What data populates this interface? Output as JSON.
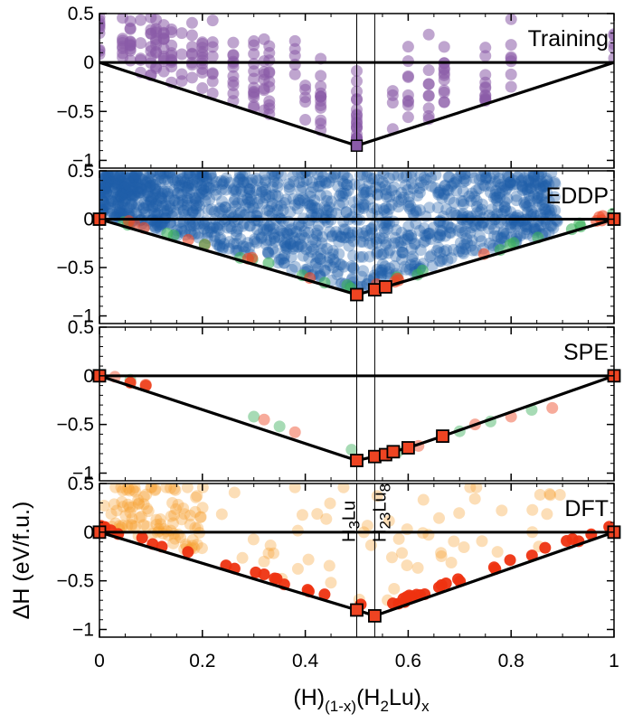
{
  "chart_data": {
    "type": "scatter",
    "description_free": true,
    "x_axis": {
      "label_main": "(H)",
      "label_sub1": "(1-x)",
      "label_mid": "(H",
      "label_sub2": "2",
      "label_end": "Lu)",
      "label_sub3": "x",
      "range": [
        0,
        1
      ],
      "ticks": [
        0,
        0.2,
        0.4,
        0.6,
        0.8,
        1
      ],
      "tick_labels": [
        "0",
        "0.2",
        "0.4",
        "0.6",
        "0.8",
        "1"
      ]
    },
    "y_axis": {
      "label": "ΔH (eV/f.u.)",
      "range": [
        -1,
        0.5
      ],
      "ticks": [
        -1,
        -0.5,
        0,
        0.5
      ],
      "tick_labels": [
        "−1",
        "−0.5",
        "0",
        "0.5"
      ]
    },
    "vertical_lines": [
      0.5,
      0.535
    ],
    "phases": [
      {
        "name_main": "H",
        "name_sub1": "3",
        "name_mid": "Lu",
        "x": 0.5
      },
      {
        "name_main": "H",
        "name_sub1": "23",
        "name_mid": "Lu",
        "name_sub2": "8",
        "x": 0.535
      }
    ],
    "hull": [
      [
        0,
        0
      ],
      [
        0.5,
        -0.85
      ],
      [
        0.535,
        -0.83
      ],
      [
        0.667,
        -0.6
      ],
      [
        1,
        0
      ]
    ],
    "colors": {
      "training": "#8a5ba8",
      "eddp": "#1f5fa8",
      "spe_green": "#3cb05c",
      "spe_red": "#ee4422",
      "dft_orange": "#f5a030",
      "dft_red": "#ee3311",
      "hull_square": "#ee4422"
    },
    "panels": [
      {
        "label": "Training",
        "hull": [
          [
            0,
            0
          ],
          [
            0.5,
            -0.85
          ],
          [
            1,
            0
          ]
        ],
        "points": [],
        "hull_squares": [
          [
            0.5,
            -0.85
          ]
        ]
      },
      {
        "label": "EDDP",
        "hull": [
          [
            0,
            0
          ],
          [
            0.5,
            -0.78
          ],
          [
            0.535,
            -0.73
          ],
          [
            0.556,
            -0.7
          ],
          [
            1,
            0
          ]
        ],
        "hull_squares": [
          [
            0,
            0
          ],
          [
            0.5,
            -0.78
          ],
          [
            0.535,
            -0.73
          ],
          [
            0.556,
            -0.7
          ],
          [
            1,
            0
          ]
        ]
      },
      {
        "label": "SPE",
        "hull": [
          [
            0,
            0
          ],
          [
            0.5,
            -0.87
          ],
          [
            0.535,
            -0.83
          ],
          [
            0.556,
            -0.81
          ],
          [
            0.571,
            -0.78
          ],
          [
            0.6,
            -0.74
          ],
          [
            0.667,
            -0.62
          ],
          [
            1,
            0
          ]
        ],
        "hull_squares": [
          [
            0,
            0
          ],
          [
            0.5,
            -0.87
          ],
          [
            0.535,
            -0.83
          ],
          [
            0.556,
            -0.81
          ],
          [
            0.571,
            -0.78
          ],
          [
            0.6,
            -0.74
          ],
          [
            0.667,
            -0.62
          ],
          [
            1,
            0
          ]
        ]
      },
      {
        "label": "DFT",
        "hull": [
          [
            0,
            0
          ],
          [
            0.5,
            -0.8
          ],
          [
            0.535,
            -0.86
          ],
          [
            1,
            0
          ]
        ],
        "hull_squares": [
          [
            0,
            0
          ],
          [
            0.5,
            -0.8
          ],
          [
            0.535,
            -0.86
          ],
          [
            1,
            0
          ]
        ]
      }
    ]
  }
}
